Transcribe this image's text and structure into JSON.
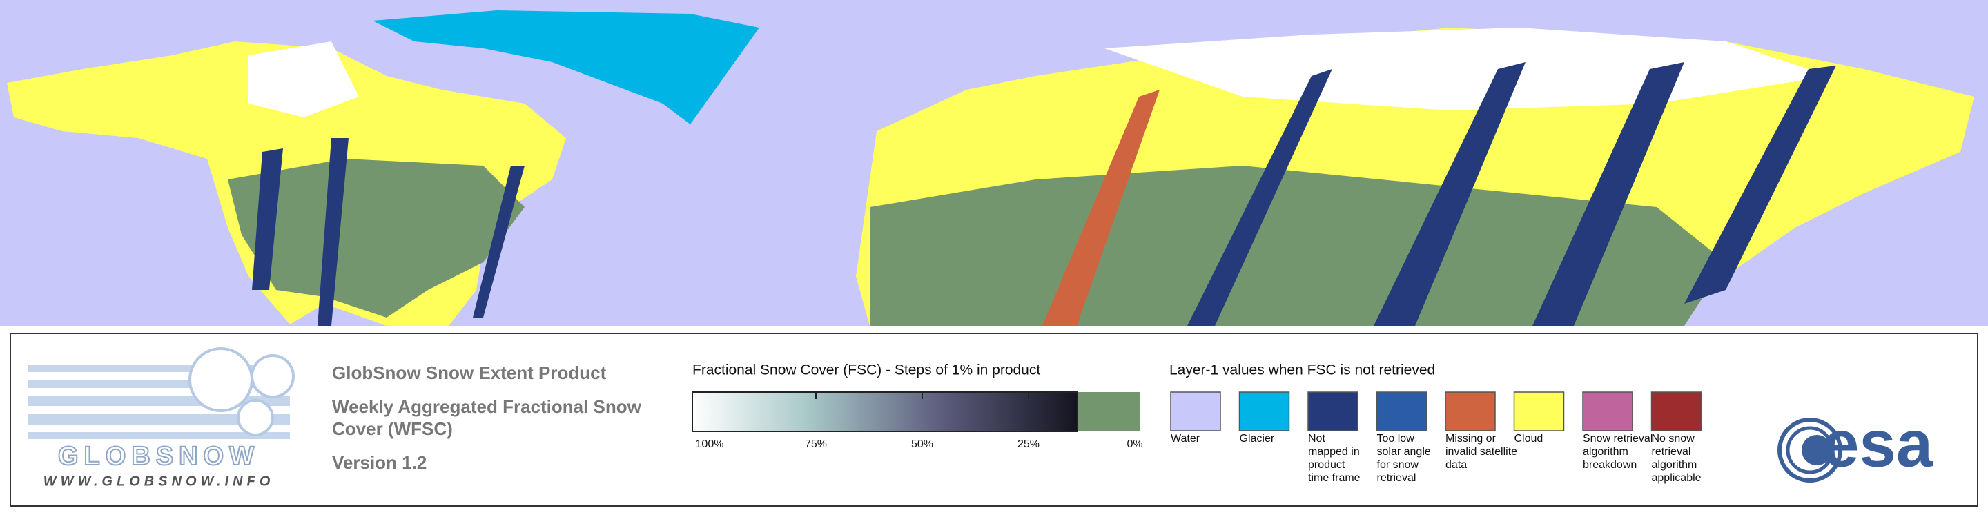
{
  "product": {
    "title": "GlobSnow Snow Extent Product",
    "subtitle_lines": [
      "Weekly Aggregated Fractional Snow",
      "Cover (WFSC)"
    ],
    "version": "Version 1.2"
  },
  "logo": {
    "name": "GLOBSNOW",
    "url": "WWW.GLOBSNOW.INFO"
  },
  "fsc_legend": {
    "title": "Fractional Snow Cover (FSC) - Steps of 1% in product",
    "ticks": [
      "100%",
      "75%",
      "50%",
      "25%",
      "0%"
    ],
    "no_snow_color": "#74966e"
  },
  "layer1_legend": {
    "title": "Layer-1 values when FSC is not retrieved",
    "items": [
      {
        "label": [
          "Water"
        ],
        "color": "#c8c8fa"
      },
      {
        "label": [
          "Glacier"
        ],
        "color": "#00b4e6"
      },
      {
        "label": [
          "Not",
          "mapped in",
          "product",
          "time frame"
        ],
        "color": "#243a7a"
      },
      {
        "label": [
          "Too low",
          "solar angle",
          "for snow",
          "retrieval"
        ],
        "color": "#2a5ca8"
      },
      {
        "label": [
          "Missing or",
          "invalid satellite",
          "data"
        ],
        "color": "#cf6440"
      },
      {
        "label": [
          "Cloud"
        ],
        "color": "#ffff5c"
      },
      {
        "label": [
          "Snow retrieval",
          "algorithm",
          "breakdown"
        ],
        "color": "#c0649e"
      },
      {
        "label": [
          "No snow",
          "retrieval",
          "algorithm",
          "applicable"
        ],
        "color": "#9c2c2e"
      }
    ]
  },
  "esa_logo": "esa"
}
